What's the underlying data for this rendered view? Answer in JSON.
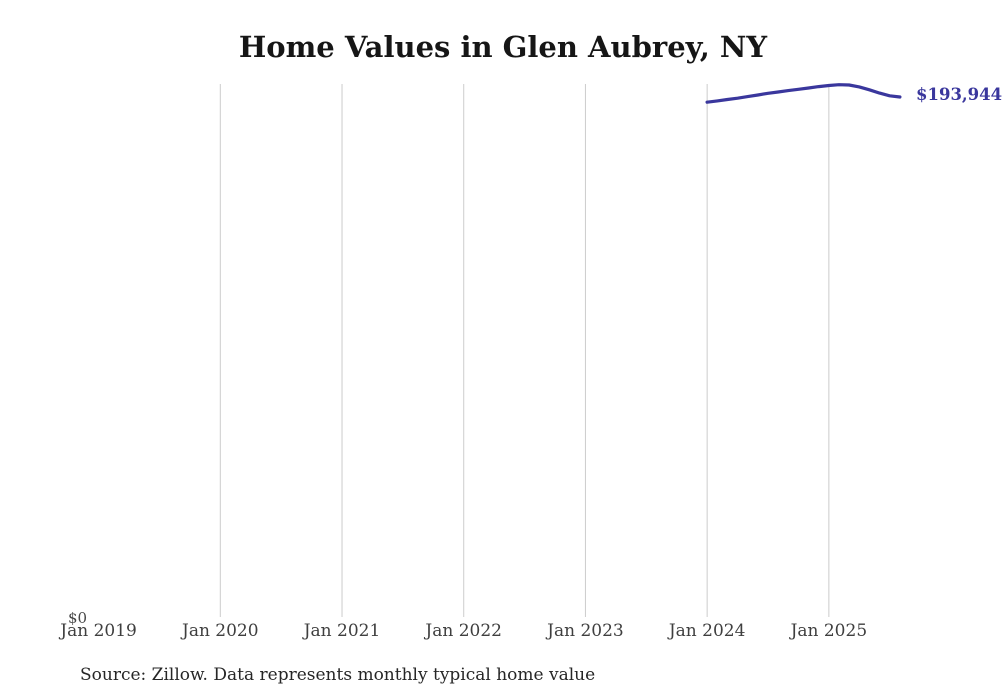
{
  "title": "Home Values in Glen Aubrey, NY",
  "source_note": "Source: Zillow. Data represents monthly typical home value",
  "labels": {
    "end_value": "$193,944",
    "y_zero": "$0"
  },
  "colors": {
    "line": "#3a379d",
    "end_label": "#3a379d",
    "gridline": "#cccccc",
    "title": "#161616",
    "axis_label": "#3f3f3f",
    "source_text": "#262626"
  },
  "chart_data": {
    "type": "line",
    "title": "Home Values in Glen Aubrey, NY",
    "xlabel": "",
    "ylabel": "",
    "x_ticks": [
      "Jan 2019",
      "Jan 2020",
      "Jan 2021",
      "Jan 2022",
      "Jan 2023",
      "Jan 2024",
      "Jan 2025"
    ],
    "y_ticks": [
      "$0"
    ],
    "ylim": [
      0,
      198800
    ],
    "grid": "vertical-only",
    "legend": "none",
    "end_label": "$193,944",
    "series": [
      {
        "name": "Monthly typical home value",
        "x": [
          "2024-01",
          "2024-02",
          "2024-03",
          "2024-04",
          "2024-05",
          "2024-06",
          "2024-07",
          "2024-08",
          "2024-09",
          "2024-10",
          "2024-11",
          "2024-12",
          "2025-01",
          "2025-02",
          "2025-03",
          "2025-04",
          "2025-05",
          "2025-06",
          "2025-07",
          "2025-08"
        ],
        "values": [
          192000,
          192500,
          193000,
          193500,
          194100,
          194700,
          195300,
          195800,
          196300,
          196800,
          197300,
          197800,
          198200,
          198500,
          198400,
          197700,
          196600,
          195400,
          194400,
          193944
        ]
      }
    ]
  }
}
